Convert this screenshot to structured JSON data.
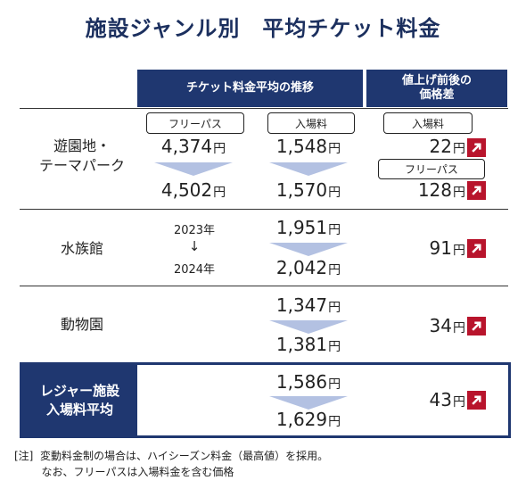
{
  "title": "施設ジャンル別　平均チケット料金",
  "header": {
    "trend": "チケット料金平均の推移",
    "diff": "値上げ前後の\n価格差"
  },
  "rows": {
    "park": {
      "label": "遊園地・\nテーマパーク",
      "pill_left": "フリーパス",
      "pill_mid": "入場料",
      "pill_right_1": "入場料",
      "pill_right_2": "フリーパス",
      "free_before": "4,374",
      "free_after": "4,502",
      "entry_before": "1,548",
      "entry_after": "1,570",
      "diff_entry": "22",
      "diff_free": "128"
    },
    "aquarium": {
      "label": "水族館",
      "year_from": "2023年",
      "year_arrow": "↓",
      "year_to": "2024年",
      "before": "1,951",
      "after": "2,042",
      "diff": "91"
    },
    "zoo": {
      "label": "動物園",
      "before": "1,347",
      "after": "1,381",
      "diff": "34"
    },
    "average": {
      "label": "レジャー施設\n入場料平均",
      "before": "1,586",
      "after": "1,629",
      "diff": "43"
    }
  },
  "unit": "円",
  "icons": {
    "increase": "arrow-up-right-icon"
  },
  "colors": {
    "navy": "#1f3770",
    "arrow_fill": "#b3c1e2",
    "increase_red": "#b8142c"
  },
  "note": {
    "line1": "[注]  変動料金制の場合は、ハイシーズン料金（最高値）を採用。",
    "line2": "        なお、フリーパスは入場料金を含む価格"
  }
}
